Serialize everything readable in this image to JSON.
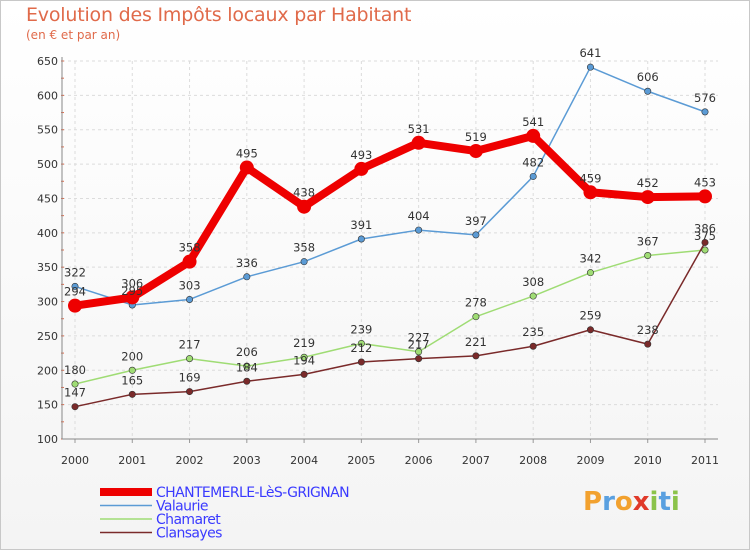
{
  "title": "Evolution des Impôts locaux par Habitant",
  "subtitle": "(en € et par an)",
  "brand": {
    "letters": [
      "P",
      "r",
      "o",
      "x",
      "i",
      "t",
      "i"
    ],
    "colors": [
      "#f2a12e",
      "#5aa0e0",
      "#f2a12e",
      "#e03a2a",
      "#8bc34a",
      "#5aa0e0",
      "#8bc34a"
    ]
  },
  "chart_data": {
    "type": "line",
    "title": "Evolution des Impôts locaux par Habitant",
    "ylabel": "(en € et par an)",
    "x": [
      "2000",
      "2001",
      "2002",
      "2003",
      "2004",
      "2005",
      "2006",
      "2007",
      "2008",
      "2009",
      "2010",
      "2011"
    ],
    "ylim": [
      100,
      650
    ],
    "yticks": [
      "100",
      "150",
      "200",
      "250",
      "300",
      "350",
      "400",
      "450",
      "500",
      "550",
      "600",
      "650"
    ],
    "grid": true,
    "series": [
      {
        "name": "CHANTEMERLE-LèS-GRIGNAN",
        "color": "#ee0000",
        "values": [
          294,
          306,
          358,
          495,
          438,
          493,
          531,
          519,
          541,
          459,
          452,
          453
        ],
        "labels": [
          "294",
          "306",
          "358",
          "495",
          "438",
          "493",
          "531",
          "519",
          "541",
          "459",
          "452",
          "453"
        ],
        "emphasis": true
      },
      {
        "name": "Valaurie",
        "color": "#5b9bd5",
        "values": [
          322,
          295,
          303,
          336,
          358,
          391,
          404,
          397,
          482,
          641,
          606,
          576
        ],
        "labels": [
          "322",
          "295",
          "303",
          "336",
          "358",
          "391",
          "404",
          "397",
          "482",
          "641",
          "606",
          "576"
        ]
      },
      {
        "name": "Chamaret",
        "color": "#9fdc74",
        "values": [
          180,
          200,
          217,
          206,
          219,
          239,
          227,
          278,
          308,
          342,
          367,
          375
        ],
        "labels": [
          "180",
          "200",
          "217",
          "206",
          "219",
          "239",
          "227",
          "278",
          "308",
          "342",
          "367",
          "375"
        ]
      },
      {
        "name": "Clansayes",
        "color": "#7a2a2a",
        "values": [
          147,
          165,
          169,
          184,
          194,
          212,
          217,
          221,
          235,
          259,
          238,
          386
        ],
        "labels": [
          "147",
          "165",
          "169",
          "184",
          "194",
          "212",
          "217",
          "221",
          "235",
          "259",
          "238",
          "386"
        ]
      }
    ]
  }
}
